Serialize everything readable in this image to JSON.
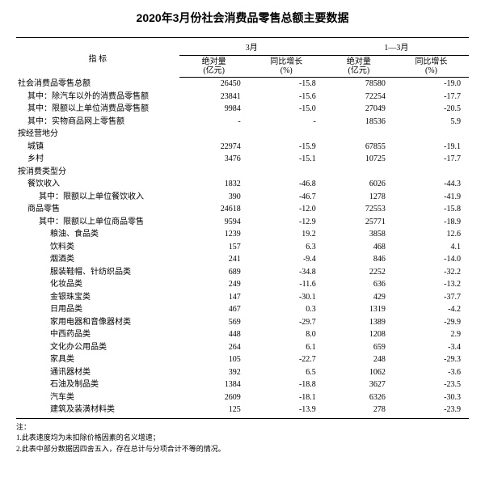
{
  "title": "2020年3月份社会消费品零售总额主要数据",
  "header": {
    "indicator": "指 标",
    "period1": "3月",
    "period2": "1—3月",
    "abs": "绝对量",
    "abs_unit": "(亿元)",
    "yoy": "同比增长",
    "yoy_unit": "(%)"
  },
  "rows": [
    {
      "label": "社会消费品零售总额",
      "indent": 0,
      "a": "26450",
      "b": "-15.8",
      "c": "78580",
      "d": "-19.0"
    },
    {
      "label": "其中：除汽车以外的消费品零售额",
      "indent": 1,
      "a": "23841",
      "b": "-15.6",
      "c": "72254",
      "d": "-17.7"
    },
    {
      "label": "其中：限额以上单位消费品零售额",
      "indent": 1,
      "a": "9984",
      "b": "-15.0",
      "c": "27049",
      "d": "-20.5"
    },
    {
      "label": "其中：实物商品网上零售额",
      "indent": 1,
      "a": "-",
      "b": "-",
      "c": "18536",
      "d": "5.9"
    },
    {
      "label": "按经营地分",
      "indent": 0,
      "a": "",
      "b": "",
      "c": "",
      "d": ""
    },
    {
      "label": "城镇",
      "indent": 1,
      "a": "22974",
      "b": "-15.9",
      "c": "67855",
      "d": "-19.1"
    },
    {
      "label": "乡村",
      "indent": 1,
      "a": "3476",
      "b": "-15.1",
      "c": "10725",
      "d": "-17.7"
    },
    {
      "label": "按消费类型分",
      "indent": 0,
      "a": "",
      "b": "",
      "c": "",
      "d": ""
    },
    {
      "label": "餐饮收入",
      "indent": 1,
      "a": "1832",
      "b": "-46.8",
      "c": "6026",
      "d": "-44.3"
    },
    {
      "label": "其中：限额以上单位餐饮收入",
      "indent": 2,
      "a": "390",
      "b": "-46.7",
      "c": "1278",
      "d": "-41.9"
    },
    {
      "label": "商品零售",
      "indent": 1,
      "a": "24618",
      "b": "-12.0",
      "c": "72553",
      "d": "-15.8"
    },
    {
      "label": "其中：限额以上单位商品零售",
      "indent": 2,
      "a": "9594",
      "b": "-12.9",
      "c": "25771",
      "d": "-18.9"
    },
    {
      "label": "粮油、食品类",
      "indent": 3,
      "a": "1239",
      "b": "19.2",
      "c": "3858",
      "d": "12.6"
    },
    {
      "label": "饮料类",
      "indent": 3,
      "a": "157",
      "b": "6.3",
      "c": "468",
      "d": "4.1"
    },
    {
      "label": "烟酒类",
      "indent": 3,
      "a": "241",
      "b": "-9.4",
      "c": "846",
      "d": "-14.0"
    },
    {
      "label": "服装鞋帽、针纺织品类",
      "indent": 3,
      "a": "689",
      "b": "-34.8",
      "c": "2252",
      "d": "-32.2"
    },
    {
      "label": "化妆品类",
      "indent": 3,
      "a": "249",
      "b": "-11.6",
      "c": "636",
      "d": "-13.2"
    },
    {
      "label": "金银珠宝类",
      "indent": 3,
      "a": "147",
      "b": "-30.1",
      "c": "429",
      "d": "-37.7"
    },
    {
      "label": "日用品类",
      "indent": 3,
      "a": "467",
      "b": "0.3",
      "c": "1319",
      "d": "-4.2"
    },
    {
      "label": "家用电器和音像器材类",
      "indent": 3,
      "a": "569",
      "b": "-29.7",
      "c": "1389",
      "d": "-29.9"
    },
    {
      "label": "中西药品类",
      "indent": 3,
      "a": "448",
      "b": "8.0",
      "c": "1208",
      "d": "2.9"
    },
    {
      "label": "文化办公用品类",
      "indent": 3,
      "a": "264",
      "b": "6.1",
      "c": "659",
      "d": "-3.4"
    },
    {
      "label": "家具类",
      "indent": 3,
      "a": "105",
      "b": "-22.7",
      "c": "248",
      "d": "-29.3"
    },
    {
      "label": "通讯器材类",
      "indent": 3,
      "a": "392",
      "b": "6.5",
      "c": "1062",
      "d": "-3.6"
    },
    {
      "label": "石油及制品类",
      "indent": 3,
      "a": "1384",
      "b": "-18.8",
      "c": "3627",
      "d": "-23.5"
    },
    {
      "label": "汽车类",
      "indent": 3,
      "a": "2609",
      "b": "-18.1",
      "c": "6326",
      "d": "-30.3"
    },
    {
      "label": "建筑及装潢材料类",
      "indent": 3,
      "a": "125",
      "b": "-13.9",
      "c": "278",
      "d": "-23.9"
    }
  ],
  "notes": {
    "hdr": "注：",
    "n1": "1.此表速度均为未扣除价格因素的名义增速；",
    "n2": "2.此表中部分数据因四舍五入，存在总计与分项合计不等的情况。"
  }
}
